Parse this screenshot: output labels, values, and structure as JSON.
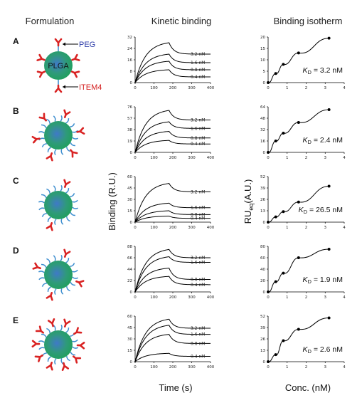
{
  "headers": {
    "formulation": "Formulation",
    "kinetic": "Kinetic binding",
    "isotherm": "Binding isotherm"
  },
  "axis_titles": {
    "kinetic_y": "Binding (R.U.)",
    "kinetic_x": "Time (s)",
    "iso_y_main": "RU",
    "iso_y_sub": "eq",
    "iso_y_unit": "(A.U.)",
    "iso_x": "Conc. (nM)"
  },
  "labels_a": {
    "peg": "PEG",
    "plga": "PLGA",
    "item4": "ITEM4"
  },
  "colors": {
    "peg": "#2a3aa8",
    "item4": "#d42020",
    "antibody": "#d92323",
    "pegChain": "#3f8fd0",
    "core": "#1fa05a",
    "coreCenter": "#3f79c8"
  },
  "x_ticks": [
    "0",
    "100",
    "200",
    "300",
    "400"
  ],
  "iso_x_ticks": [
    "0",
    "1",
    "2",
    "3",
    "4"
  ],
  "rows": [
    {
      "label": "A",
      "kd_sym": "K",
      "kd_sub": "D",
      "kd_val": " = 3.2 nM",
      "peg": false,
      "ab": 8,
      "kin_y": [
        "0",
        "8",
        "16",
        "24",
        "32"
      ],
      "kin_ymax": 32,
      "curves": [
        {
          "c": "3.2 nM",
          "peak": 28,
          "plat": 20
        },
        {
          "c": "1.6 nM",
          "peak": 20,
          "plat": 14
        },
        {
          "c": "0.8 nM",
          "peak": 15,
          "plat": 9
        },
        {
          "c": "0.4 nM",
          "peak": 9,
          "plat": 4
        }
      ],
      "iso_y": [
        "0",
        "5",
        "10",
        "15",
        "20"
      ],
      "iso_ymax": 20,
      "iso_x": [
        0,
        0.4,
        0.8,
        1.6,
        3.2
      ],
      "iso_v": [
        0,
        4,
        8,
        13,
        19.5
      ]
    },
    {
      "label": "B",
      "kd_sym": "K",
      "kd_sub": "D",
      "kd_val": " = 2.4 nM",
      "peg": true,
      "ab": 6,
      "kin_y": [
        "0",
        "19",
        "38",
        "57",
        "76"
      ],
      "kin_ymax": 76,
      "curves": [
        {
          "c": "3.2 nM",
          "peak": 70,
          "plat": 54
        },
        {
          "c": "1.6 nM",
          "peak": 51,
          "plat": 40
        },
        {
          "c": "0.8 nM",
          "peak": 35,
          "plat": 24
        },
        {
          "c": "0.4 nM",
          "peak": 20,
          "plat": 14
        }
      ],
      "iso_y": [
        "0",
        "16",
        "32",
        "48",
        "64"
      ],
      "iso_ymax": 64,
      "iso_x": [
        0,
        0.4,
        0.8,
        1.6,
        3.2
      ],
      "iso_v": [
        0,
        16,
        27,
        42,
        60
      ]
    },
    {
      "label": "C",
      "kd_sym": "K",
      "kd_sub": "D",
      "kd_val": " = 26.5 nM",
      "peg": true,
      "ab": 2,
      "kin_y": [
        "0",
        "15",
        "30",
        "45",
        "60"
      ],
      "kin_ymax": 60,
      "curves": [
        {
          "c": "3.2 nM",
          "peak": 51,
          "plat": 40
        },
        {
          "c": "1.6 nM",
          "peak": 25,
          "plat": 19
        },
        {
          "c": "0.8 nM",
          "peak": 15,
          "plat": 10
        },
        {
          "c": "0.4 nM",
          "peak": 8,
          "plat": 5
        }
      ],
      "iso_y": [
        "0",
        "13",
        "26",
        "39",
        "52"
      ],
      "iso_ymax": 52,
      "iso_x": [
        0,
        0.4,
        0.8,
        1.6,
        3.2
      ],
      "iso_v": [
        0,
        6,
        12,
        23,
        41
      ]
    },
    {
      "label": "D",
      "kd_sym": "K",
      "kd_sub": "D",
      "kd_val": " = 1.9 nM",
      "peg": true,
      "ab": 4,
      "kin_y": [
        "0",
        "22",
        "44",
        "66",
        "88"
      ],
      "kin_ymax": 88,
      "curves": [
        {
          "c": "3.2 nM",
          "peak": 82,
          "plat": 66
        },
        {
          "c": "1.6 nM",
          "peak": 68,
          "plat": 57
        },
        {
          "c": "0.8 nM",
          "peak": 46,
          "plat": 24
        },
        {
          "c": "0.4 nM",
          "peak": 30,
          "plat": 14
        }
      ],
      "iso_y": [
        "0",
        "20",
        "40",
        "60",
        "80"
      ],
      "iso_ymax": 80,
      "iso_x": [
        0,
        0.4,
        0.8,
        1.6,
        3.2
      ],
      "iso_v": [
        0,
        18,
        33,
        60,
        75
      ]
    },
    {
      "label": "E",
      "kd_sym": "K",
      "kd_sub": "D",
      "kd_val": " = 2.6 nM",
      "peg": true,
      "ab": 10,
      "kin_y": [
        "0",
        "15",
        "30",
        "45",
        "60"
      ],
      "kin_ymax": 60,
      "curves": [
        {
          "c": "3.2 nM",
          "peak": 56,
          "plat": 44
        },
        {
          "c": "1.6 nM",
          "peak": 48,
          "plat": 36
        },
        {
          "c": "0.8 nM",
          "peak": 36,
          "plat": 24
        },
        {
          "c": "0.4 nM",
          "peak": 11,
          "plat": 7
        }
      ],
      "iso_y": [
        "0",
        "13",
        "26",
        "39",
        "52"
      ],
      "iso_ymax": 52,
      "iso_x": [
        0,
        0.4,
        0.8,
        1.6,
        3.2
      ],
      "iso_v": [
        0,
        8,
        24,
        37,
        50
      ]
    }
  ]
}
